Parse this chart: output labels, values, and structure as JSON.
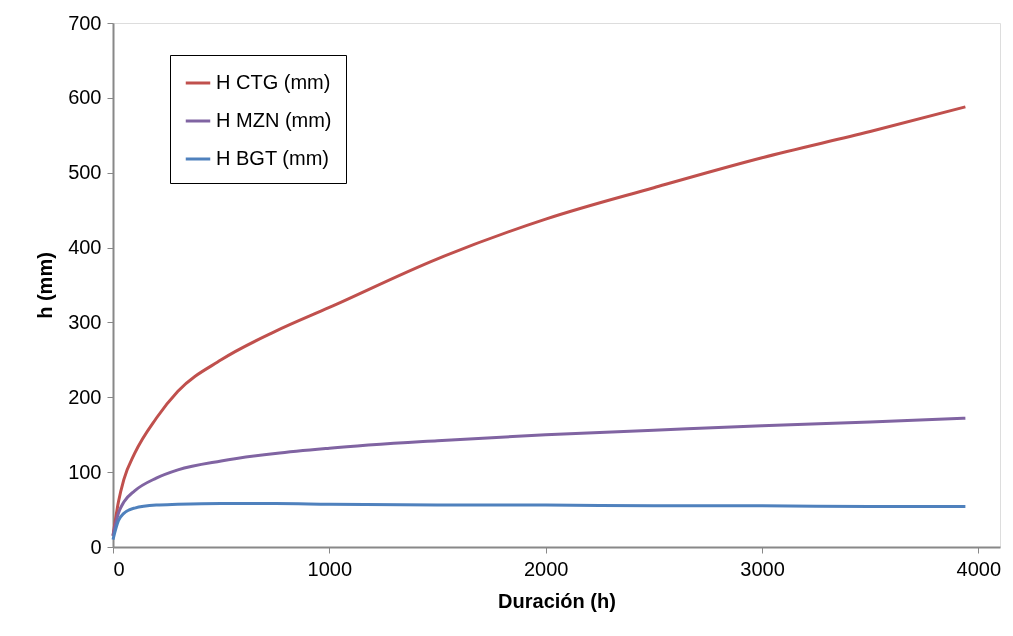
{
  "chart_data": {
    "type": "line",
    "xlabel": "Duración (h)",
    "ylabel": "h (mm)",
    "x": [
      0,
      25,
      50,
      100,
      200,
      300,
      500,
      750,
      1000,
      1500,
      2000,
      2500,
      3000,
      3500,
      3940
    ],
    "series": [
      {
        "name": "H CTG (mm)",
        "color": "#c0504d",
        "values": [
          15,
          60,
          90,
          125,
          172,
          208,
          250,
          288,
          320,
          385,
          438,
          480,
          520,
          555,
          588
        ]
      },
      {
        "name": "H MZN (mm)",
        "color": "#8064a2",
        "values": [
          15,
          45,
          60,
          75,
          92,
          103,
          115,
          125,
          132,
          142,
          150,
          156,
          162,
          167,
          172
        ]
      },
      {
        "name": "H BGT (mm)",
        "color": "#4f81bd",
        "values": [
          10,
          35,
          45,
          52,
          56,
          57,
          58,
          58,
          57,
          56,
          56,
          55,
          55,
          54,
          54
        ]
      }
    ],
    "xlim": [
      0,
      4100
    ],
    "xticks": [
      0,
      1000,
      2000,
      3000,
      4000
    ],
    "ylim": [
      0,
      700
    ],
    "yticks": [
      0,
      100,
      200,
      300,
      400,
      500,
      600,
      700
    ],
    "grid": false,
    "legend": "top left",
    "marker": "none",
    "line_style": "solid"
  }
}
